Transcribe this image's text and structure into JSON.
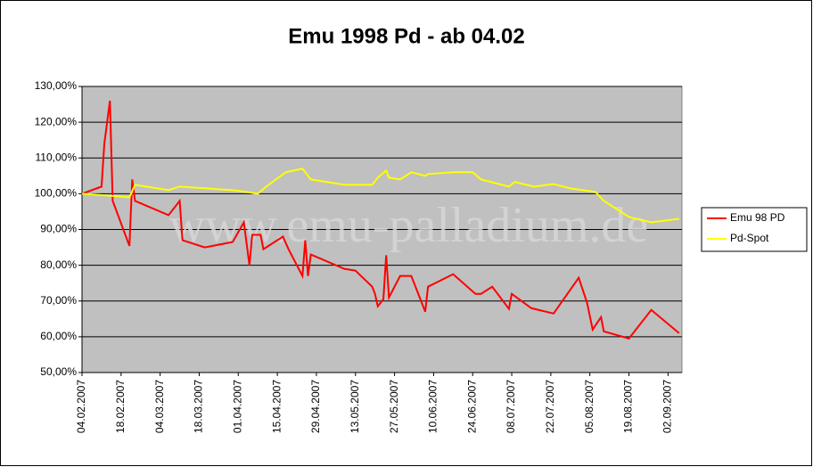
{
  "chart_data": {
    "type": "line",
    "title": "Emu 1998 Pd - ab 04.02",
    "watermark": "www.emu-palladium.de",
    "xlim": [
      "04.02.2007",
      "07.09.2007"
    ],
    "xticks": [
      "04.02.2007",
      "18.02.2007",
      "04.03.2007",
      "18.03.2007",
      "01.04.2007",
      "15.04.2007",
      "29.04.2007",
      "13.05.2007",
      "27.05.2007",
      "10.06.2007",
      "24.06.2007",
      "08.07.2007",
      "22.07.2007",
      "05.08.2007",
      "19.08.2007",
      "02.09.2007"
    ],
    "ylim": [
      50,
      130
    ],
    "yticks": [
      {
        "value": 50,
        "label": "50,00%"
      },
      {
        "value": 60,
        "label": "60,00%"
      },
      {
        "value": 70,
        "label": "70,00%"
      },
      {
        "value": 80,
        "label": "80,00%"
      },
      {
        "value": 90,
        "label": "90,00%"
      },
      {
        "value": 100,
        "label": "100,00%"
      },
      {
        "value": 110,
        "label": "110,00%"
      },
      {
        "value": 120,
        "label": "120,00%"
      },
      {
        "value": 130,
        "label": "130,00%"
      }
    ],
    "grid": true,
    "legend": "right",
    "series": [
      {
        "name": "Emu 98 PD",
        "color": "#ff0000",
        "x": [
          "04.02.2007",
          "11.02.2007",
          "12.02.2007",
          "14.02.2007",
          "15.02.2007",
          "21.02.2007",
          "22.02.2007",
          "23.02.2007",
          "07.03.2007",
          "11.03.2007",
          "12.03.2007",
          "20.03.2007",
          "30.03.2007",
          "03.04.2007",
          "05.04.2007",
          "06.04.2007",
          "09.04.2007",
          "10.04.2007",
          "17.04.2007",
          "19.04.2007",
          "24.04.2007",
          "25.04.2007",
          "26.04.2007",
          "27.04.2007",
          "09.05.2007",
          "13.05.2007",
          "19.05.2007",
          "20.05.2007",
          "21.05.2007",
          "23.05.2007",
          "24.05.2007",
          "25.05.2007",
          "29.05.2007",
          "02.06.2007",
          "07.06.2007",
          "08.06.2007",
          "17.06.2007",
          "25.06.2007",
          "27.06.2007",
          "01.07.2007",
          "07.07.2007",
          "08.07.2007",
          "15.07.2007",
          "23.07.2007",
          "01.08.2007",
          "04.08.2007",
          "06.08.2007",
          "09.08.2007",
          "10.08.2007",
          "19.08.2007",
          "27.08.2007",
          "06.09.2007"
        ],
        "values": [
          100,
          102,
          114,
          126,
          98,
          85.4,
          104,
          98,
          94,
          98,
          87,
          85,
          86.5,
          92,
          80,
          88.5,
          88.5,
          84.5,
          88,
          84.5,
          77,
          87,
          77,
          83,
          79,
          78.5,
          74,
          72,
          68.5,
          70.5,
          82.8,
          71,
          77,
          77,
          67,
          74,
          77.5,
          72,
          72,
          74,
          67.8,
          72,
          68,
          66.5,
          76.5,
          69.5,
          62,
          65.5,
          61.5,
          59.5,
          67.5,
          61
        ]
      },
      {
        "name": "Pd-Spot",
        "color": "#ffff00",
        "x": [
          "04.02.2007",
          "13.02.2007",
          "21.02.2007",
          "23.02.2007",
          "07.03.2007",
          "11.03.2007",
          "30.03.2007",
          "04.04.2007",
          "08.04.2007",
          "11.04.2007",
          "18.04.2007",
          "24.04.2007",
          "26.04.2007",
          "27.04.2007",
          "09.05.2007",
          "19.05.2007",
          "21.05.2007",
          "24.05.2007",
          "25.05.2007",
          "29.05.2007",
          "02.06.2007",
          "07.06.2007",
          "08.06.2007",
          "17.06.2007",
          "24.06.2007",
          "27.06.2007",
          "07.07.2007",
          "09.07.2007",
          "16.07.2007",
          "23.07.2007",
          "29.07.2007",
          "07.08.2007",
          "10.08.2007",
          "19.08.2007",
          "27.08.2007",
          "06.09.2007"
        ],
        "values": [
          100,
          99.5,
          99,
          102.5,
          101,
          102,
          101,
          100.5,
          100,
          102,
          106,
          107,
          105,
          104,
          102.5,
          102.5,
          104.5,
          106.5,
          104.5,
          104,
          106,
          105,
          105.5,
          106,
          106,
          104,
          102,
          103.3,
          102,
          102.7,
          101.5,
          100.5,
          98,
          93.5,
          92,
          93
        ]
      }
    ]
  }
}
